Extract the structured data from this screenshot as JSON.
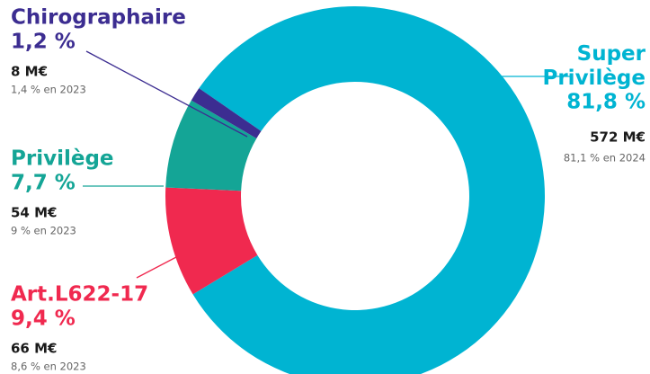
{
  "chart_data": {
    "type": "donut",
    "categories": [
      "Super Privilège",
      "Art.L622-17",
      "Privilège",
      "Chirographaire"
    ],
    "values": [
      81.8,
      9.4,
      7.7,
      1.2
    ],
    "value_labels": [
      "81,8 %",
      "9,4 %",
      "7,7 %",
      "1,2 %"
    ],
    "colors": [
      "#00b4d2",
      "#f0294f",
      "#14a596",
      "#3c2d91"
    ],
    "amounts": [
      "572 M€",
      "66 M€",
      "54 M€",
      "8 M€"
    ],
    "previous": [
      "81,1 % en 2024",
      "8,6 % en 2023",
      "9 % en 2023",
      "1,4 % en 2023"
    ]
  }
}
